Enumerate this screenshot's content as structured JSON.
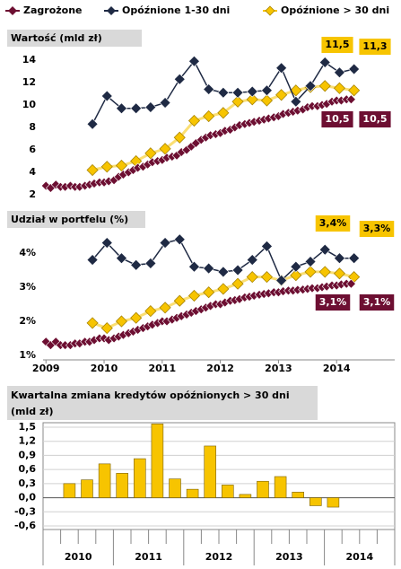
{
  "chart_data": [
    {
      "type": "line",
      "title": "Wartość (mld zł)",
      "xlim": [
        2008.95,
        2015
      ],
      "ylim": [
        2,
        14
      ],
      "yticks": [
        2,
        4,
        6,
        8,
        10,
        12,
        14
      ],
      "grid": false,
      "legend": "top",
      "series": [
        {
          "name": "Zagrożone",
          "color": "#6d0f32",
          "x": [
            2009.0,
            2009.08,
            2009.17,
            2009.25,
            2009.33,
            2009.42,
            2009.5,
            2009.58,
            2009.67,
            2009.75,
            2009.83,
            2009.92,
            2010.0,
            2010.08,
            2010.17,
            2010.25,
            2010.33,
            2010.42,
            2010.5,
            2010.58,
            2010.67,
            2010.75,
            2010.83,
            2010.92,
            2011.0,
            2011.08,
            2011.17,
            2011.25,
            2011.33,
            2011.42,
            2011.5,
            2011.58,
            2011.67,
            2011.75,
            2011.83,
            2011.92,
            2012.0,
            2012.08,
            2012.17,
            2012.25,
            2012.33,
            2012.42,
            2012.5,
            2012.58,
            2012.67,
            2012.75,
            2012.83,
            2012.92,
            2013.0,
            2013.08,
            2013.17,
            2013.25,
            2013.33,
            2013.42,
            2013.5,
            2013.58,
            2013.67,
            2013.75,
            2013.83,
            2013.92,
            2014.0,
            2014.08,
            2014.17,
            2014.25
          ],
          "values": [
            2.8,
            2.6,
            2.9,
            2.7,
            2.7,
            2.8,
            2.7,
            2.7,
            2.8,
            2.9,
            3.0,
            3.1,
            3.1,
            3.2,
            3.3,
            3.6,
            3.8,
            4.0,
            4.2,
            4.4,
            4.5,
            4.7,
            4.9,
            5.0,
            5.1,
            5.3,
            5.4,
            5.5,
            5.8,
            6.0,
            6.3,
            6.6,
            6.9,
            7.1,
            7.3,
            7.4,
            7.5,
            7.7,
            7.8,
            8.0,
            8.2,
            8.3,
            8.4,
            8.5,
            8.6,
            8.7,
            8.8,
            8.9,
            9.0,
            9.2,
            9.3,
            9.4,
            9.5,
            9.6,
            9.8,
            9.9,
            9.9,
            10.0,
            10.1,
            10.3,
            10.4,
            10.4,
            10.5,
            10.5
          ],
          "value_labels": [
            null,
            null,
            null,
            null,
            null,
            null,
            null,
            null,
            null,
            null,
            null,
            null,
            null,
            null,
            null,
            null,
            null,
            null,
            null,
            null,
            null,
            null,
            null,
            null,
            null,
            null,
            null,
            null,
            null,
            null,
            null,
            null,
            null,
            null,
            null,
            null,
            null,
            null,
            null,
            null,
            null,
            null,
            null,
            null,
            null,
            null,
            null,
            null,
            null,
            null,
            null,
            null,
            null,
            null,
            null,
            null,
            null,
            null,
            null,
            null,
            null,
            null,
            "10,5",
            "10,5"
          ]
        },
        {
          "name": "Opóźnione 1-30 dni",
          "color": "#1f2a44",
          "x": [
            2009.8,
            2010.05,
            2010.3,
            2010.55,
            2010.8,
            2011.05,
            2011.3,
            2011.55,
            2011.8,
            2012.05,
            2012.3,
            2012.55,
            2012.8,
            2013.05,
            2013.3,
            2013.55,
            2013.8,
            2014.05,
            2014.3
          ],
          "values": [
            8.3,
            10.8,
            9.7,
            9.7,
            9.8,
            10.2,
            12.3,
            13.9,
            11.4,
            11.1,
            11.1,
            11.2,
            11.3,
            13.3,
            10.3,
            11.7,
            13.8,
            12.9,
            13.2
          ]
        },
        {
          "name": "Opóźnione > 30 dni",
          "color": "#f7c400",
          "x": [
            2009.8,
            2010.05,
            2010.3,
            2010.55,
            2010.8,
            2011.05,
            2011.3,
            2011.55,
            2011.8,
            2012.05,
            2012.3,
            2012.55,
            2012.8,
            2013.05,
            2013.3,
            2013.55,
            2013.8,
            2014.05,
            2014.3
          ],
          "values": [
            4.2,
            4.5,
            4.6,
            5.0,
            5.7,
            6.1,
            7.1,
            8.6,
            9.0,
            9.3,
            10.3,
            10.5,
            10.4,
            10.9,
            11.3,
            11.6,
            11.7,
            11.5,
            11.3
          ],
          "value_labels": [
            null,
            null,
            null,
            null,
            null,
            null,
            null,
            null,
            null,
            null,
            null,
            null,
            null,
            null,
            null,
            null,
            null,
            "11,5",
            "11,3"
          ]
        }
      ]
    },
    {
      "type": "line",
      "title": "Udział w portfelu (%)",
      "xlim": [
        2008.95,
        2015
      ],
      "xticks": [
        2009,
        2010,
        2011,
        2012,
        2013,
        2014
      ],
      "ylim": [
        1,
        4.5
      ],
      "yticks": [
        {
          "value": 1,
          "label": "1%"
        },
        {
          "value": 2,
          "label": "2%"
        },
        {
          "value": 3,
          "label": "3%"
        },
        {
          "value": 4,
          "label": "4%"
        }
      ],
      "grid": false,
      "series": [
        {
          "color": "#6d0f32",
          "x": [
            2009.0,
            2009.08,
            2009.17,
            2009.25,
            2009.33,
            2009.42,
            2009.5,
            2009.58,
            2009.67,
            2009.75,
            2009.83,
            2009.92,
            2010.0,
            2010.08,
            2010.17,
            2010.25,
            2010.33,
            2010.42,
            2010.5,
            2010.58,
            2010.67,
            2010.75,
            2010.83,
            2010.92,
            2011.0,
            2011.08,
            2011.17,
            2011.25,
            2011.33,
            2011.42,
            2011.5,
            2011.58,
            2011.67,
            2011.75,
            2011.83,
            2011.92,
            2012.0,
            2012.08,
            2012.17,
            2012.25,
            2012.33,
            2012.42,
            2012.5,
            2012.58,
            2012.67,
            2012.75,
            2012.83,
            2012.92,
            2013.0,
            2013.08,
            2013.17,
            2013.25,
            2013.33,
            2013.42,
            2013.5,
            2013.58,
            2013.67,
            2013.75,
            2013.83,
            2013.92,
            2014.0,
            2014.08,
            2014.17,
            2014.25
          ],
          "values": [
            1.4,
            1.3,
            1.4,
            1.3,
            1.3,
            1.3,
            1.35,
            1.35,
            1.4,
            1.4,
            1.45,
            1.5,
            1.5,
            1.45,
            1.5,
            1.55,
            1.6,
            1.65,
            1.7,
            1.75,
            1.8,
            1.85,
            1.9,
            1.95,
            2.0,
            2.0,
            2.05,
            2.1,
            2.15,
            2.2,
            2.25,
            2.3,
            2.35,
            2.4,
            2.45,
            2.5,
            2.5,
            2.55,
            2.6,
            2.62,
            2.65,
            2.7,
            2.72,
            2.75,
            2.78,
            2.8,
            2.82,
            2.85,
            2.85,
            2.88,
            2.9,
            2.9,
            2.92,
            2.93,
            2.95,
            2.97,
            2.97,
            3.0,
            3.02,
            3.05,
            3.05,
            3.08,
            3.1,
            3.1
          ],
          "value_labels": [
            null,
            null,
            null,
            null,
            null,
            null,
            null,
            null,
            null,
            null,
            null,
            null,
            null,
            null,
            null,
            null,
            null,
            null,
            null,
            null,
            null,
            null,
            null,
            null,
            null,
            null,
            null,
            null,
            null,
            null,
            null,
            null,
            null,
            null,
            null,
            null,
            null,
            null,
            null,
            null,
            null,
            null,
            null,
            null,
            null,
            null,
            null,
            null,
            null,
            null,
            null,
            null,
            null,
            null,
            null,
            null,
            null,
            null,
            null,
            null,
            null,
            null,
            "3,1%",
            "3,1%"
          ]
        },
        {
          "color": "#1f2a44",
          "x": [
            2009.8,
            2010.05,
            2010.3,
            2010.55,
            2010.8,
            2011.05,
            2011.3,
            2011.55,
            2011.8,
            2012.05,
            2012.3,
            2012.55,
            2012.8,
            2013.05,
            2013.3,
            2013.55,
            2013.8,
            2014.05,
            2014.3
          ],
          "values": [
            3.8,
            4.3,
            3.85,
            3.65,
            3.7,
            4.3,
            4.4,
            3.6,
            3.55,
            3.45,
            3.5,
            3.8,
            4.2,
            3.2,
            3.6,
            3.75,
            4.1,
            3.85,
            3.85
          ]
        },
        {
          "color": "#f7c400",
          "x": [
            2009.8,
            2010.05,
            2010.3,
            2010.55,
            2010.8,
            2011.05,
            2011.3,
            2011.55,
            2011.8,
            2012.05,
            2012.3,
            2012.55,
            2012.8,
            2013.05,
            2013.3,
            2013.55,
            2013.8,
            2014.05,
            2014.3
          ],
          "values": [
            1.95,
            1.8,
            2.0,
            2.1,
            2.3,
            2.4,
            2.6,
            2.75,
            2.85,
            2.95,
            3.1,
            3.3,
            3.3,
            3.2,
            3.35,
            3.45,
            3.45,
            3.4,
            3.3
          ],
          "value_labels": [
            null,
            null,
            null,
            null,
            null,
            null,
            null,
            null,
            null,
            null,
            null,
            null,
            null,
            null,
            null,
            null,
            null,
            "3,4%",
            "3,3%"
          ]
        }
      ]
    },
    {
      "type": "bar",
      "title": [
        "Kwartalna zmiana kredytów opóźnionych > 30 dni",
        "(mld zł)"
      ],
      "ylim": [
        -0.6,
        1.5
      ],
      "yticks": [
        {
          "value": 1.5,
          "label": "1,5"
        },
        {
          "value": 1.2,
          "label": "1,2"
        },
        {
          "value": 0.9,
          "label": "0,9"
        },
        {
          "value": 0.6,
          "label": "0,6"
        },
        {
          "value": 0.3,
          "label": "0,3"
        },
        {
          "value": 0,
          "label": "0,0"
        },
        {
          "value": -0.3,
          "label": "-0,3"
        },
        {
          "value": -0.6,
          "label": "-0,6"
        }
      ],
      "grid": true,
      "color": "#f7c400",
      "categories": [
        null,
        null,
        null,
        null,
        null,
        null,
        null,
        null,
        null,
        null,
        null,
        null,
        null,
        null,
        null,
        null,
        null,
        null,
        null,
        null
      ],
      "years": [
        "2010",
        "2011",
        "2012",
        "2013",
        "2014"
      ],
      "values": [
        null,
        0.3,
        0.38,
        0.72,
        0.52,
        0.83,
        1.57,
        0.4,
        0.18,
        1.1,
        0.27,
        0.07,
        0.35,
        0.45,
        0.12,
        -0.17,
        -0.2,
        null,
        null,
        null
      ]
    }
  ]
}
